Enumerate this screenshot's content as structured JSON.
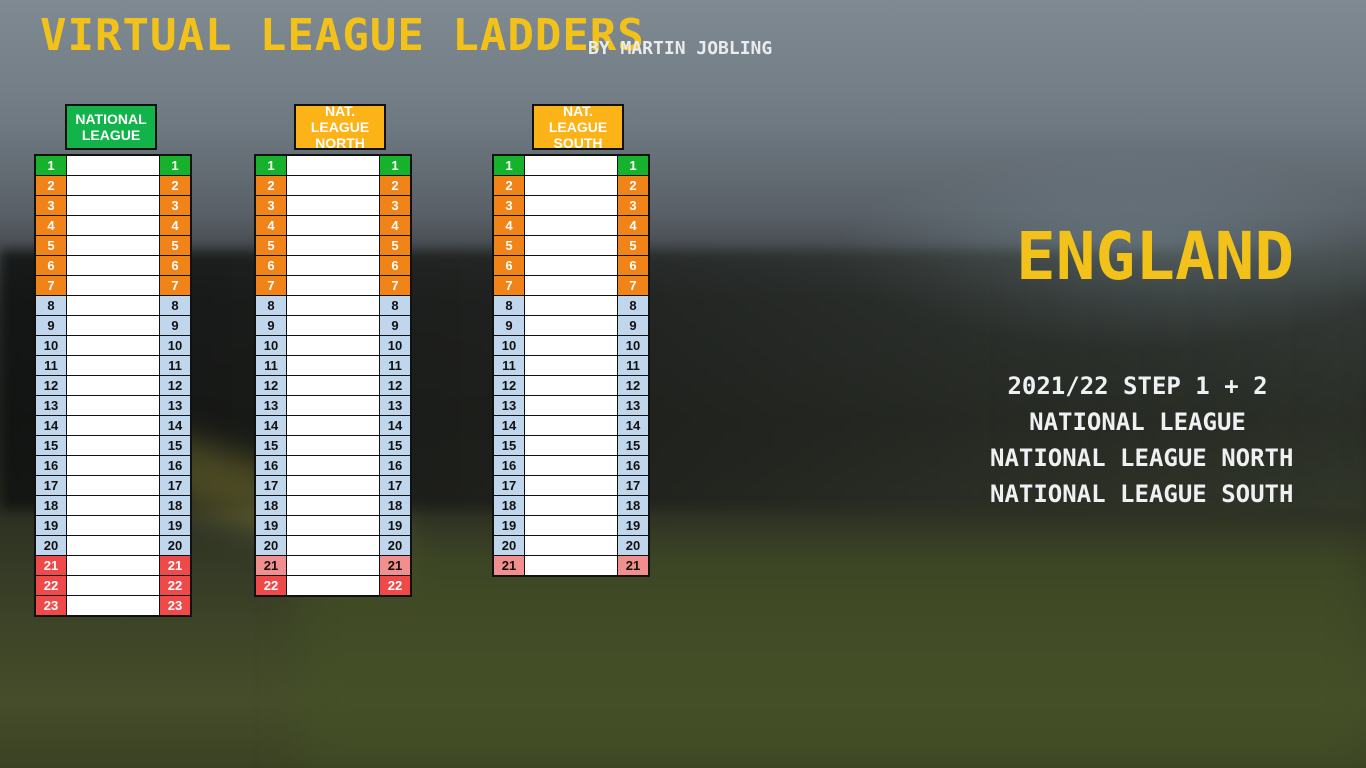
{
  "title": "VIRTUAL LEAGUE LADDERS",
  "byline": "BY MARTIN JOBLING",
  "country": "ENGLAND",
  "info_lines": [
    "2021/22 STEP 1 + 2",
    "NATIONAL LEAGUE",
    "NATIONAL LEAGUE NORTH",
    "NATIONAL LEAGUE SOUTH"
  ],
  "colors": {
    "title": "#f2c21b",
    "champion": "#16b22b",
    "playoff": "#f08418",
    "mid": "#c0d6ec",
    "relegation": "#ef4a4a",
    "relegation_light": "#f18f8f",
    "header_green": "#12b34b",
    "header_amber": "#fbb317"
  },
  "ladders": [
    {
      "id": "national-league",
      "header": "NATIONAL LEAGUE",
      "header_color": "header_green",
      "team_count": 23,
      "zones": [
        {
          "pos": [
            1
          ],
          "color": "champion"
        },
        {
          "pos": [
            2,
            3,
            4,
            5,
            6,
            7
          ],
          "color": "playoff"
        },
        {
          "pos": [
            8,
            9,
            10,
            11,
            12,
            13,
            14,
            15,
            16,
            17,
            18,
            19,
            20
          ],
          "color": "mid"
        },
        {
          "pos": [
            21,
            22,
            23
          ],
          "color": "relegation"
        }
      ]
    },
    {
      "id": "nat-league-north",
      "header": "NAT. LEAGUE NORTH",
      "header_color": "header_amber",
      "team_count": 22,
      "zones": [
        {
          "pos": [
            1
          ],
          "color": "champion"
        },
        {
          "pos": [
            2,
            3,
            4,
            5,
            6,
            7
          ],
          "color": "playoff"
        },
        {
          "pos": [
            8,
            9,
            10,
            11,
            12,
            13,
            14,
            15,
            16,
            17,
            18,
            19,
            20
          ],
          "color": "mid"
        },
        {
          "pos": [
            21
          ],
          "color": "relegation_light"
        },
        {
          "pos": [
            22
          ],
          "color": "relegation"
        }
      ]
    },
    {
      "id": "nat-league-south",
      "header": "NAT. LEAGUE SOUTH",
      "header_color": "header_amber",
      "team_count": 21,
      "zones": [
        {
          "pos": [
            1
          ],
          "color": "champion"
        },
        {
          "pos": [
            2,
            3,
            4,
            5,
            6,
            7
          ],
          "color": "playoff"
        },
        {
          "pos": [
            8,
            9,
            10,
            11,
            12,
            13,
            14,
            15,
            16,
            17,
            18,
            19,
            20
          ],
          "color": "mid"
        },
        {
          "pos": [
            21
          ],
          "color": "relegation_light"
        }
      ]
    }
  ]
}
